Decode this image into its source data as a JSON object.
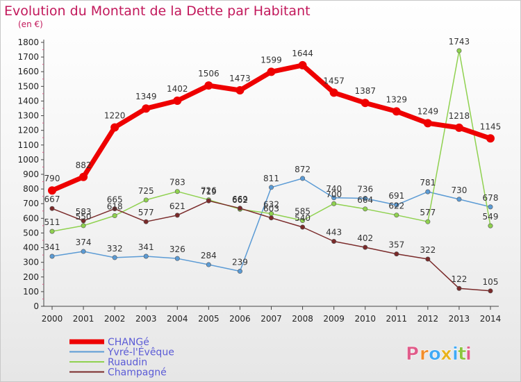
{
  "chart_data": {
    "type": "line",
    "title": "Evolution du Montant de la Dette par Habitant",
    "subtitle": "(en €)",
    "x": [
      "2000",
      "2001",
      "2002",
      "2003",
      "2004",
      "2005",
      "2006",
      "2007",
      "2008",
      "2009",
      "2010",
      "2011",
      "2012",
      "2013",
      "2014"
    ],
    "yticks": [
      0,
      100,
      200,
      300,
      400,
      500,
      600,
      700,
      800,
      900,
      1000,
      1100,
      1200,
      1300,
      1400,
      1500,
      1600,
      1700,
      1800
    ],
    "ylim": [
      0,
      1800
    ],
    "grid": false,
    "legend_position": "bottom-left",
    "series": [
      {
        "name": "CHANGé",
        "color": "#ee0000",
        "width": 7,
        "marker_r": 6,
        "values": [
          790,
          882,
          1220,
          1349,
          1402,
          1506,
          1473,
          1599,
          1644,
          1457,
          1387,
          1329,
          1249,
          1218,
          1145
        ],
        "labels": [
          "790",
          "882",
          "1220",
          "1349",
          "1402",
          "1506",
          "1473",
          "1599",
          "1644",
          "1457",
          "1387",
          "1329",
          "1249",
          "1218",
          "1145"
        ]
      },
      {
        "name": "Yvré-l'Évêque",
        "color": "#5b9bd5",
        "width": 1.5,
        "marker_r": 3.2,
        "values": [
          341,
          374,
          332,
          341,
          326,
          284,
          239,
          811,
          872,
          740,
          736,
          691,
          781,
          730,
          678
        ],
        "labels": [
          "341",
          "374",
          "332",
          "341",
          "326",
          "284",
          "239",
          "811",
          "872",
          "740",
          "736",
          "691",
          "781",
          "730",
          "678"
        ]
      },
      {
        "name": "Ruaudin",
        "color": "#8fd14f",
        "width": 1.5,
        "marker_r": 3.2,
        "values": [
          511,
          550,
          618,
          725,
          783,
          726,
          662,
          632,
          585,
          700,
          664,
          622,
          577,
          1743,
          549
        ],
        "labels": [
          "511",
          "550",
          "618",
          "725",
          "783",
          "726",
          "662",
          "632",
          "585",
          "700",
          "664",
          "622",
          "577",
          "1743",
          "549"
        ]
      },
      {
        "name": "Champagné",
        "color": "#7a2a2a",
        "width": 1.5,
        "marker_r": 3.2,
        "values": [
          667,
          583,
          665,
          577,
          621,
          719,
          669,
          603,
          540,
          443,
          402,
          357,
          322,
          122,
          105
        ],
        "labels": [
          "667",
          "583",
          "665",
          "577",
          "621",
          "719",
          "669",
          "603",
          "540",
          "443",
          "402",
          "357",
          "322",
          "122",
          "105"
        ]
      }
    ]
  },
  "legend": {
    "items": [
      {
        "name": "CHANGé",
        "color": "#ee0000",
        "text_color": "#5b5bd6",
        "thick": true
      },
      {
        "name": "Yvré-l'Évêque",
        "color": "#5b9bd5",
        "text_color": "#5b5bd6",
        "thick": false
      },
      {
        "name": "Ruaudin",
        "color": "#8fd14f",
        "text_color": "#5b5bd6",
        "thick": false
      },
      {
        "name": "Champagné",
        "color": "#7a2a2a",
        "text_color": "#5b5bd6",
        "thick": false
      }
    ]
  },
  "brand": {
    "letters": [
      "P",
      "r",
      "o",
      "x",
      "i",
      "t",
      "i"
    ],
    "colors": [
      "#e05c8a",
      "#f28c28",
      "#3fa9f5",
      "#e8b21c",
      "#3fa9f5",
      "#8cc63f",
      "#e05c8a"
    ]
  }
}
